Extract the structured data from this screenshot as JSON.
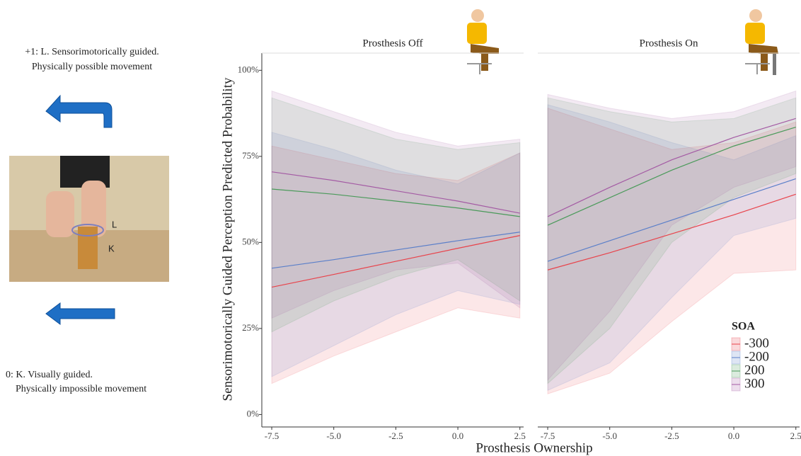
{
  "left_panel": {
    "top_label": [
      "+1: L. Sensorimotorically guided.",
      "Physically possible movement"
    ],
    "bottom_label": [
      "0:  K. Visually guided.",
      "Physically impossible movement"
    ],
    "photo_labels": [
      "L",
      "K"
    ]
  },
  "chart_data": {
    "type": "line",
    "y_label": "Sensorimotorically Guided Perception Predicted Probability",
    "x_label": "Prosthesis Ownership",
    "x": [
      -7.5,
      -5,
      -2.5,
      0,
      2.5
    ],
    "xlim": [
      -7.9,
      2.65
    ],
    "xticks": [
      -7.5,
      {
        "value": -5,
        "label": "-5.0"
      },
      -2.5,
      {
        "value": 0,
        "label": "0.0"
      },
      2.5
    ],
    "ylim": [
      -3,
      105
    ],
    "yticks": [
      {
        "value": 0,
        "label": "0%"
      },
      {
        "value": 25,
        "label": "25%"
      },
      {
        "value": 50,
        "label": "50%"
      },
      {
        "value": 75,
        "label": "75%"
      },
      {
        "value": 100,
        "label": "100%"
      }
    ],
    "legend": {
      "title": "SOA",
      "position": "bottom-right"
    },
    "series": [
      {
        "name": "-300",
        "color": "#e8434b"
      },
      {
        "name": "-200",
        "color": "#5b7fc9"
      },
      {
        "name": "200",
        "color": "#4a9a5a"
      },
      {
        "name": "300",
        "color": "#a45ba4"
      }
    ],
    "panels": [
      {
        "title": "Prosthesis Off",
        "series": [
          {
            "values": [
              37,
              40.7,
              44.5,
              48.3,
              52
            ],
            "lower": [
              9,
              17,
              24,
              31,
              28
            ],
            "upper": [
              78,
              74,
              70,
              68,
              76
            ]
          },
          {
            "values": [
              42.5,
              45,
              47.8,
              50.5,
              53
            ],
            "lower": [
              11,
              20,
              29,
              36,
              32
            ],
            "upper": [
              82,
              77,
              71,
              67,
              76
            ]
          },
          {
            "values": [
              65.5,
              64,
              62,
              60,
              57.5
            ],
            "lower": [
              24,
              33,
              40,
              45,
              33
            ],
            "upper": [
              92,
              86,
              80,
              77,
              79
            ]
          },
          {
            "values": [
              70.5,
              68,
              65,
              62,
              58.5
            ],
            "lower": [
              28,
              36,
              42,
              44,
              31
            ],
            "upper": [
              94,
              88,
              82,
              78,
              80
            ]
          }
        ]
      },
      {
        "title": "Prosthesis On",
        "series": [
          {
            "values": [
              42,
              47,
              52.5,
              58,
              64
            ],
            "lower": [
              6,
              12,
              27,
              41,
              42
            ],
            "upper": [
              89,
              83,
              77,
              79,
              85
            ]
          },
          {
            "values": [
              44.5,
              50.5,
              56.5,
              62.5,
              68.5
            ],
            "lower": [
              7,
              15,
              34,
              52,
              57
            ],
            "upper": [
              90,
              85,
              79,
              74,
              81
            ]
          },
          {
            "values": [
              55,
              63,
              71,
              78,
              83.5
            ],
            "lower": [
              9,
              25,
              50,
              63,
              70
            ],
            "upper": [
              92,
              88,
              85,
              86,
              92
            ]
          },
          {
            "values": [
              57.5,
              66,
              74,
              80.5,
              86
            ],
            "lower": [
              10,
              30,
              55,
              66,
              72
            ],
            "upper": [
              93,
              89,
              86,
              88,
              94
            ]
          }
        ]
      }
    ]
  }
}
